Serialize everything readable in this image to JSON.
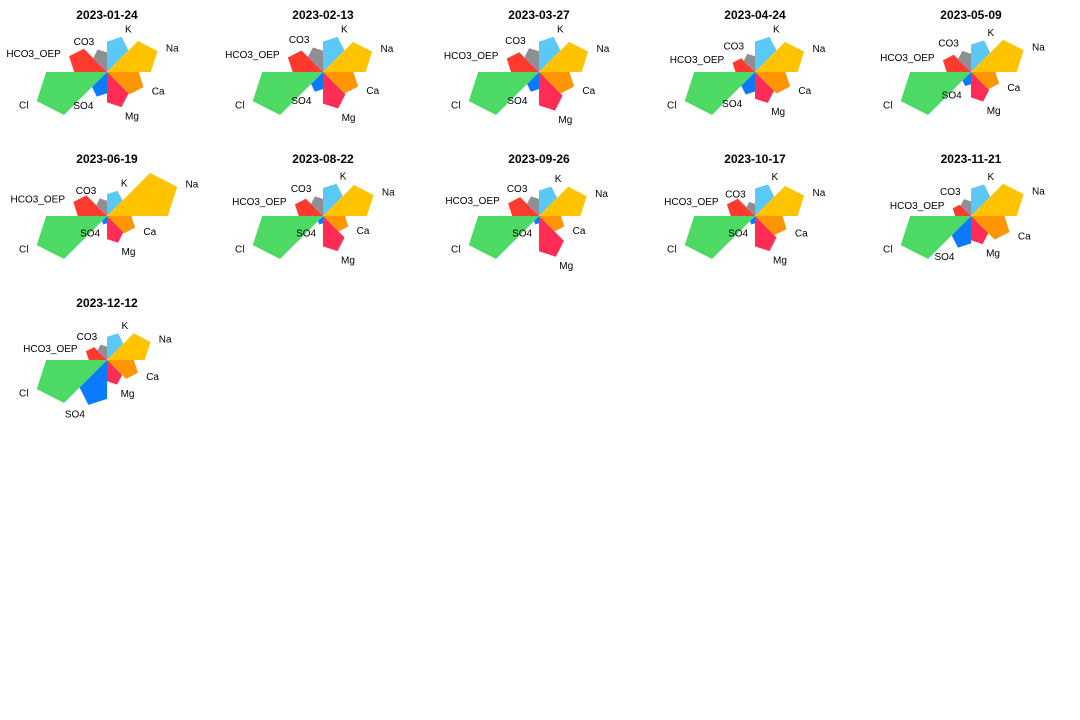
{
  "chart_data": {
    "type": "star",
    "variables": [
      "K",
      "Na",
      "Ca",
      "Mg",
      "SO4",
      "Cl",
      "HCO3_OEP",
      "CO3"
    ],
    "colors": [
      "#5bc8f5",
      "#ffc300",
      "#ff9500",
      "#ff2d55",
      "#0a7aff",
      "#4cd964",
      "#ff3b30",
      "#8e8e93"
    ],
    "panels": [
      {
        "title": "2023-01-24",
        "values": [
          0.5,
          0.72,
          0.52,
          0.5,
          0.35,
          1.0,
          0.54,
          0.32
        ]
      },
      {
        "title": "2023-02-13",
        "values": [
          0.5,
          0.7,
          0.5,
          0.52,
          0.28,
          1.0,
          0.5,
          0.35
        ]
      },
      {
        "title": "2023-03-27",
        "values": [
          0.5,
          0.7,
          0.5,
          0.55,
          0.28,
          1.0,
          0.46,
          0.34
        ]
      },
      {
        "title": "2023-04-24",
        "values": [
          0.5,
          0.7,
          0.5,
          0.44,
          0.32,
          1.0,
          0.32,
          0.26
        ]
      },
      {
        "title": "2023-05-09",
        "values": [
          0.45,
          0.75,
          0.4,
          0.42,
          0.2,
          1.0,
          0.4,
          0.3
        ]
      },
      {
        "title": "2023-06-19",
        "values": [
          0.36,
          1.0,
          0.4,
          0.38,
          0.12,
          1.0,
          0.48,
          0.25
        ]
      },
      {
        "title": "2023-08-22",
        "values": [
          0.46,
          0.72,
          0.36,
          0.5,
          0.12,
          1.0,
          0.4,
          0.28
        ]
      },
      {
        "title": "2023-09-26",
        "values": [
          0.42,
          0.68,
          0.36,
          0.58,
          0.12,
          1.0,
          0.44,
          0.28
        ]
      },
      {
        "title": "2023-10-17",
        "values": [
          0.45,
          0.7,
          0.45,
          0.5,
          0.12,
          1.0,
          0.4,
          0.2
        ]
      },
      {
        "title": "2023-11-21",
        "values": [
          0.45,
          0.75,
          0.55,
          0.4,
          0.45,
          1.0,
          0.26,
          0.24
        ]
      },
      {
        "title": "2023-12-12",
        "values": [
          0.38,
          0.62,
          0.44,
          0.35,
          0.64,
          1.0,
          0.3,
          0.22
        ]
      }
    ]
  }
}
